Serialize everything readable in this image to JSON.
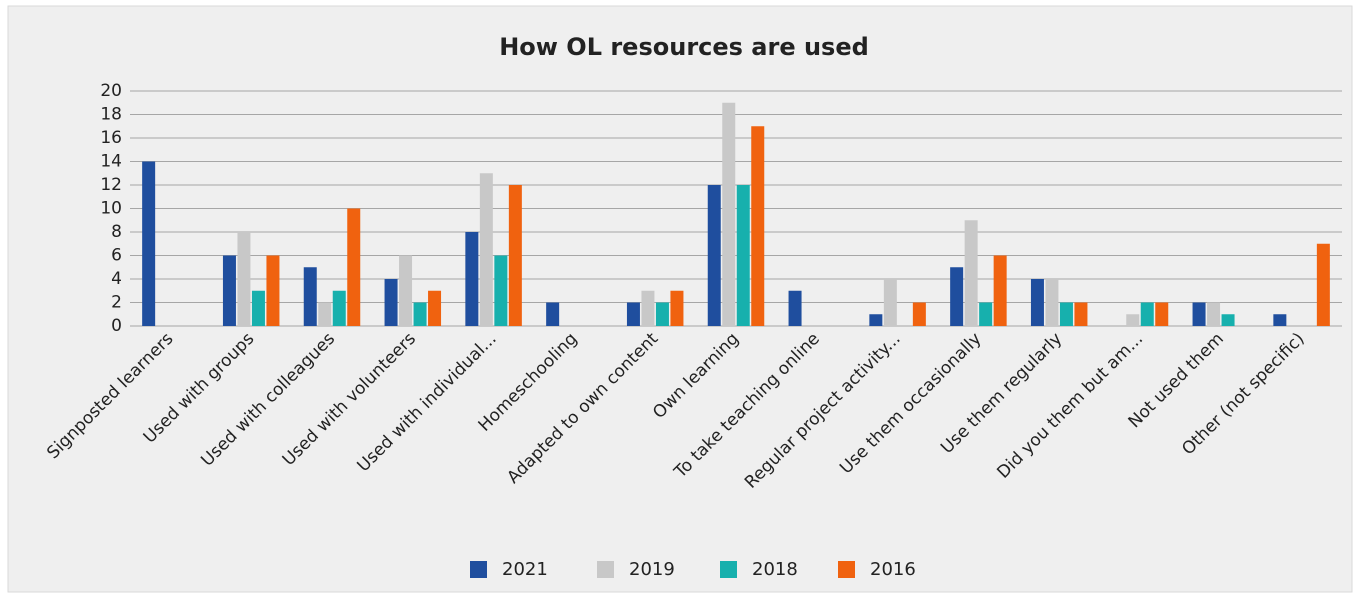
{
  "chart_data": {
    "type": "bar",
    "title": "How OL resources are used",
    "categories": [
      "Signposted learners",
      "Used with groups",
      "Used with colleagues",
      "Used with volunteers",
      "Used with individual...",
      "Homeschooling",
      "Adapted to own content",
      "Own learning",
      "To take teaching online",
      "Regular project activity...",
      "Use them occasionally",
      "Use them regularly",
      "Did you them but am...",
      "Not used them",
      "Other (not specific)"
    ],
    "series": [
      {
        "name": "2021",
        "color": "#1f4e9e",
        "values": [
          14,
          6,
          5,
          4,
          8,
          2,
          2,
          12,
          3,
          1,
          5,
          4,
          0,
          2,
          1
        ]
      },
      {
        "name": "2019",
        "color": "#c8c8c8",
        "values": [
          0,
          8,
          2,
          6,
          13,
          0,
          3,
          19,
          0,
          4,
          9,
          4,
          1,
          2,
          0
        ]
      },
      {
        "name": "2018",
        "color": "#17b0ad",
        "values": [
          0,
          3,
          3,
          2,
          6,
          0,
          2,
          12,
          0,
          0,
          2,
          2,
          2,
          1,
          0
        ]
      },
      {
        "name": "2016",
        "color": "#f0620f",
        "values": [
          0,
          6,
          10,
          3,
          12,
          0,
          3,
          17,
          0,
          2,
          6,
          2,
          2,
          0,
          7
        ]
      }
    ],
    "ylim": [
      0,
      20
    ],
    "yticks": [
      0,
      2,
      4,
      6,
      8,
      10,
      12,
      14,
      16,
      18,
      20
    ],
    "grid": true,
    "legend": "bottom"
  }
}
